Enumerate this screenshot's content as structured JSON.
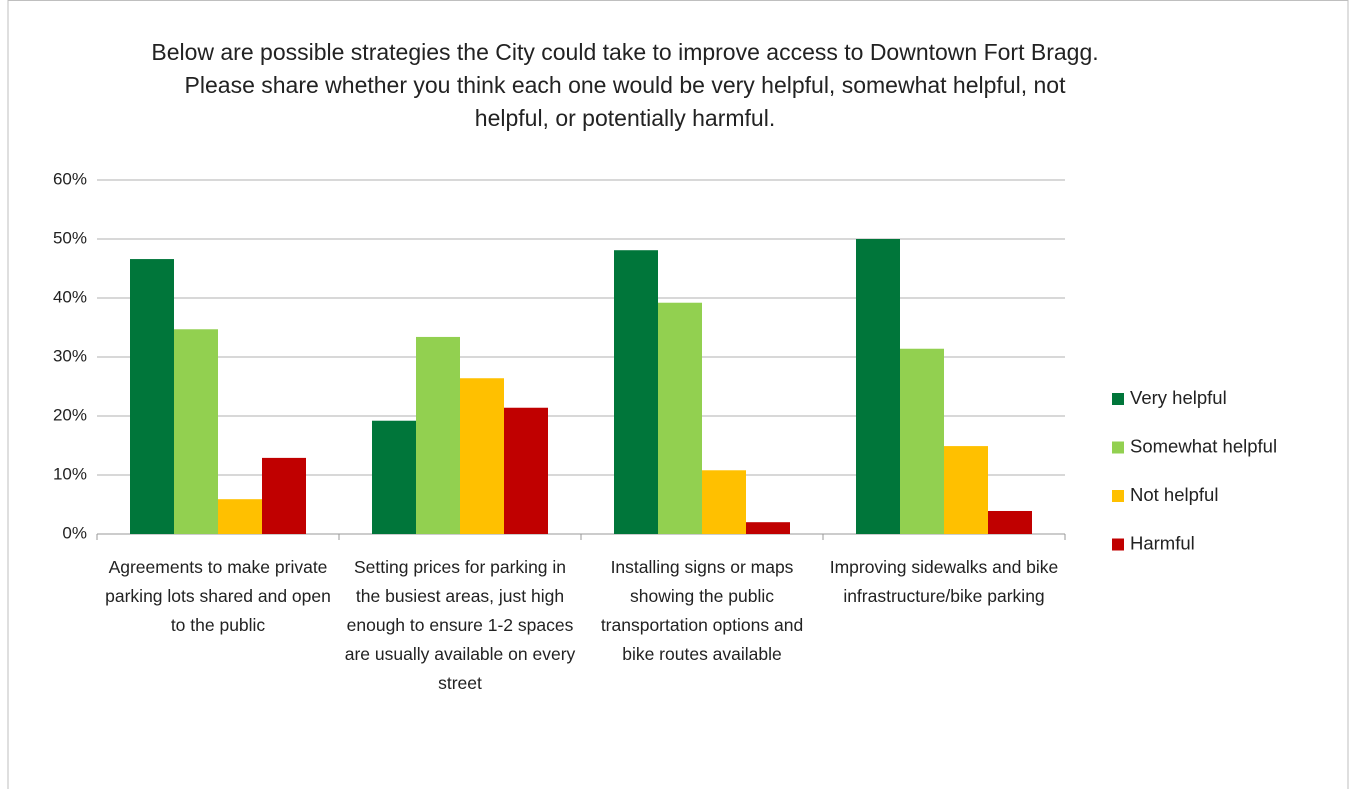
{
  "chart_data": {
    "type": "bar",
    "title": "Below are possible strategies the City could take to improve access to Downtown Fort Bragg. Please share whether you think each one would be very helpful, somewhat helpful, not helpful, or potentially harmful.",
    "categories": [
      "Agreements to make private parking lots shared and open to the public",
      "Setting prices for parking in the busiest areas, just high enough to ensure 1-2 spaces are usually available on every street",
      "Installing signs or maps showing the public transportation options and bike routes available",
      "Improving sidewalks and bike infrastructure/bike parking"
    ],
    "series": [
      {
        "name": "Very helpful",
        "color": "#00763a",
        "values": [
          46.6,
          19.2,
          48.1,
          50.0
        ]
      },
      {
        "name": "Somewhat helpful",
        "color": "#92d050",
        "values": [
          34.7,
          33.4,
          39.2,
          31.4
        ]
      },
      {
        "name": "Not helpful",
        "color": "#ffc000",
        "values": [
          5.9,
          26.4,
          10.8,
          14.9
        ]
      },
      {
        "name": "Harmful",
        "color": "#c00000",
        "values": [
          12.9,
          21.4,
          2.0,
          3.9
        ]
      }
    ],
    "ylim": [
      0,
      60
    ],
    "yticks": [
      {
        "value": 0,
        "label": "0%"
      },
      {
        "value": 10,
        "label": "10%"
      },
      {
        "value": 20,
        "label": "20%"
      },
      {
        "value": 30,
        "label": "30%"
      },
      {
        "value": 40,
        "label": "40%"
      },
      {
        "value": 50,
        "label": "50%"
      },
      {
        "value": 60,
        "label": "60%"
      }
    ],
    "grid": true,
    "legend": "right"
  }
}
